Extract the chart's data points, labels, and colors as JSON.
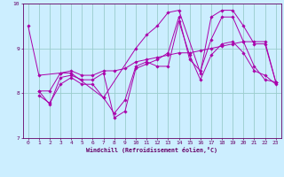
{
  "background_color": "#cceeff",
  "line_color": "#aa00aa",
  "grid_color": "#99cccc",
  "xlabel": "Windchill (Refroidissement éolien,°C)",
  "xlim": [
    -0.5,
    23.5
  ],
  "ylim": [
    7,
    10
  ],
  "yticks": [
    7,
    8,
    9,
    10
  ],
  "xticks": [
    0,
    1,
    2,
    3,
    4,
    5,
    6,
    7,
    8,
    9,
    10,
    11,
    12,
    13,
    14,
    15,
    16,
    17,
    18,
    19,
    20,
    21,
    22,
    23
  ],
  "series": [
    {
      "x": [
        0,
        1,
        3,
        4,
        7,
        10,
        11,
        12,
        13,
        14,
        16,
        17,
        18,
        19,
        20,
        21,
        22,
        23
      ],
      "y": [
        9.5,
        8.4,
        8.45,
        8.45,
        7.9,
        9.0,
        9.3,
        9.5,
        9.8,
        9.85,
        8.45,
        9.7,
        9.85,
        9.85,
        9.5,
        9.1,
        9.1,
        8.25
      ]
    },
    {
      "x": [
        1,
        2,
        3,
        4,
        5,
        6,
        7,
        8,
        9,
        10,
        11,
        12,
        13,
        14,
        15,
        16,
        17,
        18,
        19,
        20,
        21,
        22,
        23
      ],
      "y": [
        7.95,
        7.78,
        8.2,
        8.35,
        8.2,
        8.2,
        7.9,
        7.55,
        7.85,
        8.6,
        8.7,
        8.6,
        8.6,
        9.6,
        8.85,
        8.3,
        8.85,
        9.1,
        9.15,
        8.9,
        8.5,
        8.4,
        8.2
      ]
    },
    {
      "x": [
        1,
        2,
        3,
        4,
        5,
        6,
        7,
        8,
        9,
        10,
        11,
        12,
        13,
        14,
        15,
        16,
        17,
        18,
        19,
        20,
        21,
        22,
        23
      ],
      "y": [
        8.05,
        7.75,
        8.35,
        8.4,
        8.3,
        8.3,
        8.45,
        7.45,
        7.6,
        8.55,
        8.65,
        8.75,
        8.9,
        9.7,
        8.75,
        8.5,
        9.2,
        9.7,
        9.7,
        9.15,
        8.6,
        8.3,
        8.25
      ]
    },
    {
      "x": [
        1,
        2,
        3,
        4,
        5,
        6,
        7,
        8,
        9,
        10,
        11,
        12,
        13,
        14,
        15,
        16,
        17,
        18,
        19,
        20,
        21,
        22,
        23
      ],
      "y": [
        8.05,
        8.05,
        8.45,
        8.5,
        8.4,
        8.4,
        8.5,
        8.5,
        8.55,
        8.7,
        8.75,
        8.8,
        8.85,
        8.9,
        8.9,
        8.95,
        9.0,
        9.05,
        9.1,
        9.15,
        9.15,
        9.15,
        8.25
      ]
    }
  ]
}
